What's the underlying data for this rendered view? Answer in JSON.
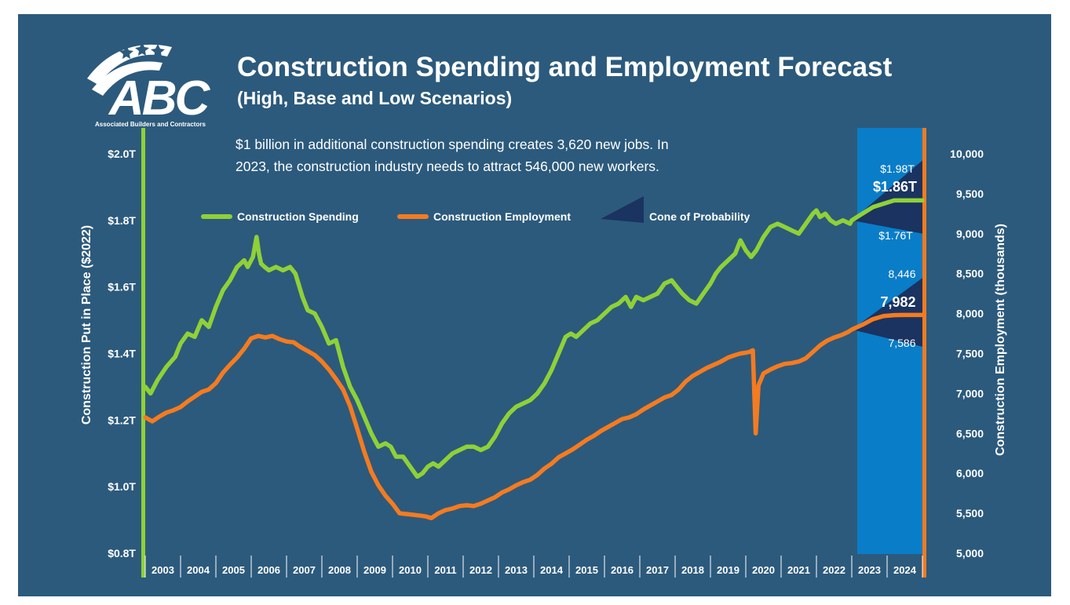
{
  "logo": {
    "letters": "ABC",
    "tagline": "Associated Builders and Contractors"
  },
  "header": {
    "title": "Construction Spending and Employment Forecast",
    "subtitle": "(High, Base and Low Scenarios)"
  },
  "note": {
    "line1": "$1 billion in additional construction spending creates 3,620 new jobs. In",
    "line2": "2023, the construction industry needs to attract 546,000 new workers."
  },
  "colors": {
    "background": "#2c5a7c",
    "forecast_band": "#0a7dc8",
    "spending": "#8fd137",
    "employment": "#f57b1f",
    "cone": "#1a3360"
  },
  "icons": [
    "abc-logo-icon"
  ],
  "chart_data": {
    "type": "line",
    "title": "Construction Spending and Employment Forecast",
    "subtitle": "(High, Base and Low Scenarios)",
    "ylabel": "Construction Put in Place ($2022)",
    "y2label": "Construction Employment (thousands)",
    "ylim": [
      0.8,
      2.0
    ],
    "y2lim": [
      5000,
      10000
    ],
    "yticks": [
      "$0.8T",
      "$1.0T",
      "$1.2T",
      "$1.4T",
      "$1.6T",
      "$1.8T",
      "$2.0T"
    ],
    "y2ticks": [
      "5,000",
      "5,500",
      "6,000",
      "6,500",
      "7,000",
      "7,500",
      "8,000",
      "8,500",
      "9,000",
      "9,500",
      "10,000"
    ],
    "xticks": [
      "2003",
      "2004",
      "2005",
      "2006",
      "2007",
      "2008",
      "2009",
      "2010",
      "2011",
      "2012",
      "2013",
      "2014",
      "2015",
      "2016",
      "2017",
      "2018",
      "2019",
      "2020",
      "2021",
      "2022",
      "2023",
      "2024"
    ],
    "xlim": [
      2003,
      2025
    ],
    "forecast_start": 2023,
    "legend": {
      "position": "top",
      "items": [
        "Construction Spending",
        "Construction Employment",
        "Cone of Probability"
      ]
    },
    "series": [
      {
        "name": "Construction Spending",
        "axis": "left",
        "units": "trillions $2022",
        "x": [
          2003.0,
          2003.15,
          2003.35,
          2003.6,
          2003.85,
          2004.0,
          2004.2,
          2004.4,
          2004.6,
          2004.8,
          2005.0,
          2005.2,
          2005.4,
          2005.6,
          2005.8,
          2005.9,
          2006.05,
          2006.15,
          2006.22,
          2006.28,
          2006.38,
          2006.5,
          2006.7,
          2006.9,
          2007.1,
          2007.25,
          2007.45,
          2007.6,
          2007.8,
          2008.0,
          2008.2,
          2008.4,
          2008.6,
          2008.8,
          2009.0,
          2009.2,
          2009.4,
          2009.6,
          2009.8,
          2009.95,
          2010.1,
          2010.3,
          2010.5,
          2010.7,
          2010.85,
          2011.0,
          2011.15,
          2011.3,
          2011.5,
          2011.7,
          2011.9,
          2012.1,
          2012.3,
          2012.5,
          2012.7,
          2012.9,
          2013.1,
          2013.3,
          2013.5,
          2013.7,
          2013.9,
          2014.1,
          2014.3,
          2014.5,
          2014.7,
          2014.9,
          2015.05,
          2015.2,
          2015.4,
          2015.6,
          2015.8,
          2016.0,
          2016.2,
          2016.4,
          2016.6,
          2016.75,
          2016.9,
          2017.1,
          2017.3,
          2017.5,
          2017.7,
          2017.9,
          2018.05,
          2018.2,
          2018.4,
          2018.6,
          2018.8,
          2019.0,
          2019.15,
          2019.3,
          2019.5,
          2019.7,
          2019.85,
          2020.0,
          2020.15,
          2020.3,
          2020.5,
          2020.7,
          2020.9,
          2021.1,
          2021.3,
          2021.5,
          2021.7,
          2021.9,
          2022.0,
          2022.1,
          2022.25,
          2022.4,
          2022.55,
          2022.75,
          2022.95,
          2023.0,
          2023.3,
          2023.6,
          2023.9,
          2024.2,
          2024.5,
          2024.8,
          2025.0
        ],
        "values": [
          1.3,
          1.28,
          1.32,
          1.36,
          1.39,
          1.43,
          1.46,
          1.45,
          1.5,
          1.48,
          1.54,
          1.59,
          1.62,
          1.66,
          1.68,
          1.66,
          1.69,
          1.75,
          1.7,
          1.67,
          1.66,
          1.65,
          1.66,
          1.65,
          1.66,
          1.64,
          1.57,
          1.53,
          1.52,
          1.48,
          1.43,
          1.44,
          1.36,
          1.3,
          1.26,
          1.21,
          1.16,
          1.12,
          1.13,
          1.12,
          1.09,
          1.09,
          1.06,
          1.03,
          1.04,
          1.06,
          1.07,
          1.06,
          1.08,
          1.1,
          1.11,
          1.12,
          1.12,
          1.11,
          1.12,
          1.15,
          1.19,
          1.22,
          1.24,
          1.25,
          1.26,
          1.28,
          1.31,
          1.35,
          1.4,
          1.45,
          1.46,
          1.45,
          1.47,
          1.49,
          1.5,
          1.52,
          1.54,
          1.55,
          1.57,
          1.54,
          1.57,
          1.56,
          1.57,
          1.58,
          1.61,
          1.62,
          1.6,
          1.58,
          1.56,
          1.55,
          1.58,
          1.61,
          1.64,
          1.66,
          1.68,
          1.7,
          1.74,
          1.71,
          1.69,
          1.71,
          1.75,
          1.78,
          1.79,
          1.78,
          1.77,
          1.76,
          1.79,
          1.82,
          1.83,
          1.81,
          1.82,
          1.8,
          1.79,
          1.8,
          1.79,
          1.8,
          1.82,
          1.84,
          1.85,
          1.86,
          1.86,
          1.86,
          1.86
        ]
      },
      {
        "name": "Construction Employment",
        "axis": "right",
        "units": "thousands",
        "x": [
          2003.0,
          2003.2,
          2003.4,
          2003.6,
          2003.8,
          2004.0,
          2004.2,
          2004.4,
          2004.6,
          2004.8,
          2005.0,
          2005.2,
          2005.4,
          2005.6,
          2005.8,
          2006.0,
          2006.2,
          2006.4,
          2006.6,
          2006.8,
          2007.0,
          2007.2,
          2007.4,
          2007.6,
          2007.8,
          2008.0,
          2008.2,
          2008.4,
          2008.6,
          2008.8,
          2009.0,
          2009.2,
          2009.4,
          2009.6,
          2009.8,
          2010.0,
          2010.2,
          2010.4,
          2010.6,
          2010.8,
          2010.95,
          2011.1,
          2011.3,
          2011.5,
          2011.7,
          2011.9,
          2012.1,
          2012.3,
          2012.5,
          2012.7,
          2012.9,
          2013.1,
          2013.3,
          2013.5,
          2013.7,
          2013.9,
          2014.1,
          2014.3,
          2014.5,
          2014.7,
          2014.9,
          2015.1,
          2015.3,
          2015.5,
          2015.7,
          2015.9,
          2016.1,
          2016.3,
          2016.5,
          2016.7,
          2016.9,
          2017.1,
          2017.3,
          2017.5,
          2017.7,
          2017.9,
          2018.1,
          2018.3,
          2018.5,
          2018.7,
          2018.9,
          2019.1,
          2019.3,
          2019.5,
          2019.7,
          2019.85,
          2020.0,
          2020.1,
          2020.2,
          2020.28,
          2020.36,
          2020.5,
          2020.7,
          2020.9,
          2021.1,
          2021.3,
          2021.5,
          2021.7,
          2021.9,
          2022.1,
          2022.3,
          2022.5,
          2022.7,
          2022.9,
          2023.0,
          2023.3,
          2023.6,
          2023.9,
          2024.2,
          2024.5,
          2024.8,
          2025.0
        ],
        "values": [
          6700,
          6650,
          6710,
          6760,
          6790,
          6830,
          6900,
          6960,
          7020,
          7050,
          7130,
          7260,
          7360,
          7450,
          7560,
          7690,
          7720,
          7700,
          7720,
          7680,
          7650,
          7640,
          7580,
          7530,
          7480,
          7400,
          7300,
          7180,
          7050,
          6840,
          6560,
          6270,
          6020,
          5850,
          5720,
          5620,
          5500,
          5490,
          5480,
          5470,
          5460,
          5440,
          5500,
          5540,
          5560,
          5590,
          5600,
          5590,
          5620,
          5660,
          5700,
          5760,
          5800,
          5850,
          5890,
          5920,
          5980,
          6060,
          6120,
          6200,
          6250,
          6300,
          6360,
          6420,
          6470,
          6530,
          6580,
          6630,
          6680,
          6700,
          6740,
          6800,
          6850,
          6900,
          6950,
          6980,
          7050,
          7150,
          7220,
          7270,
          7320,
          7360,
          7400,
          7450,
          7480,
          7500,
          7510,
          7520,
          7540,
          6500,
          7100,
          7250,
          7300,
          7340,
          7370,
          7380,
          7400,
          7440,
          7520,
          7600,
          7660,
          7700,
          7730,
          7770,
          7800,
          7860,
          7930,
          7970,
          7980,
          7982,
          7982,
          7982
        ]
      }
    ],
    "cones": [
      {
        "series": "Construction Spending",
        "start_x": 2023.0,
        "start": 1.8,
        "high": 1.98,
        "base": 1.86,
        "low": 1.76
      },
      {
        "series": "Construction Employment",
        "start_x": 2023.0,
        "start": 7800,
        "high": 8446,
        "base": 7982,
        "low": 7586
      }
    ],
    "annotations": {
      "spending_high": "$1.98T",
      "spending_base": "$1.86T",
      "spending_low": "$1.76T",
      "employment_high": "8,446",
      "employment_base": "7,982",
      "employment_low": "7,586"
    }
  }
}
